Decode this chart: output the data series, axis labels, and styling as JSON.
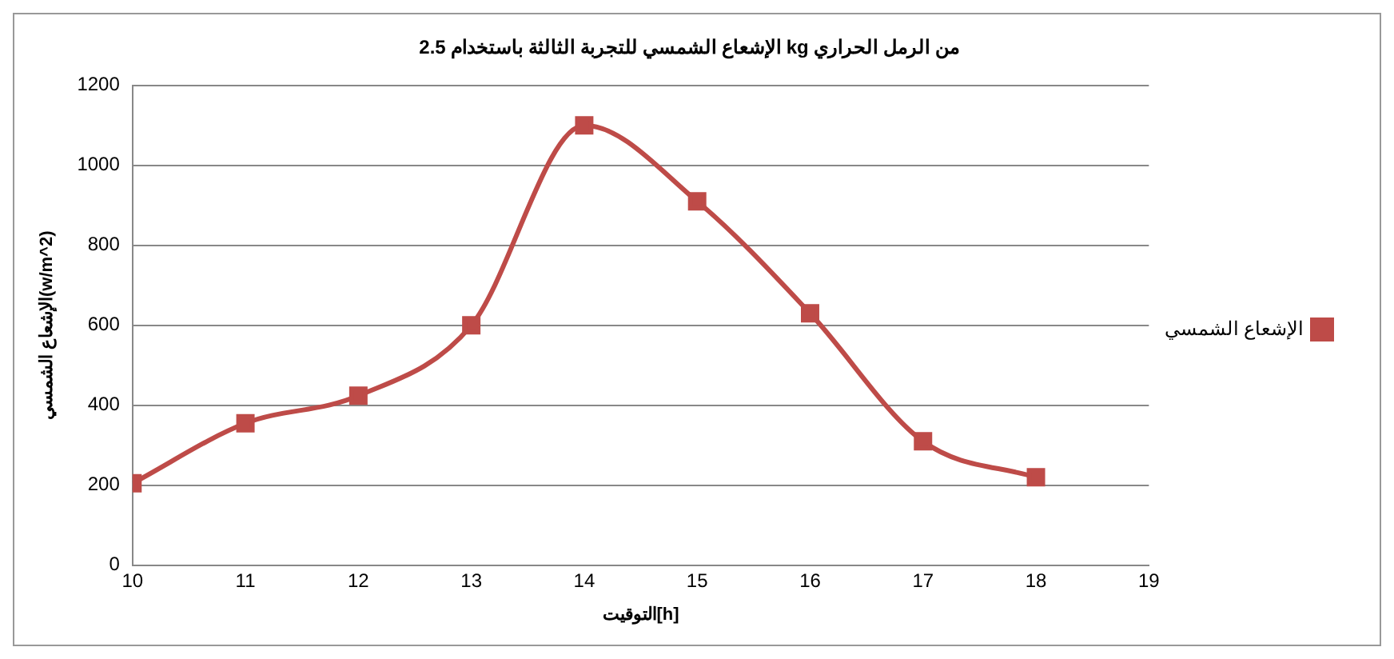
{
  "chart_data": {
    "type": "line",
    "title": "الإشعاع الشمسي للتجربة الثالثة باستخدام 2.5 kg من الرمل الحراري",
    "xlabel": "التوقيت[h]",
    "ylabel": "الإشعاع الشمسي(w/m^2)",
    "x": [
      10,
      11,
      12,
      13,
      14,
      15,
      16,
      17,
      18
    ],
    "series": [
      {
        "name": "الإشعاع الشمسي",
        "color": "#be4b48",
        "values": [
          205,
          355,
          424,
          600,
          1100,
          910,
          630,
          310,
          220
        ]
      }
    ],
    "xlim": [
      10,
      19
    ],
    "xticks": [
      10,
      11,
      12,
      13,
      14,
      15,
      16,
      17,
      18,
      19
    ],
    "ylim": [
      0,
      1200
    ],
    "yticks": [
      0,
      200,
      400,
      600,
      800,
      1000,
      1200
    ],
    "grid": "y",
    "legend": "right",
    "marker": "square",
    "line_style": "solid"
  }
}
